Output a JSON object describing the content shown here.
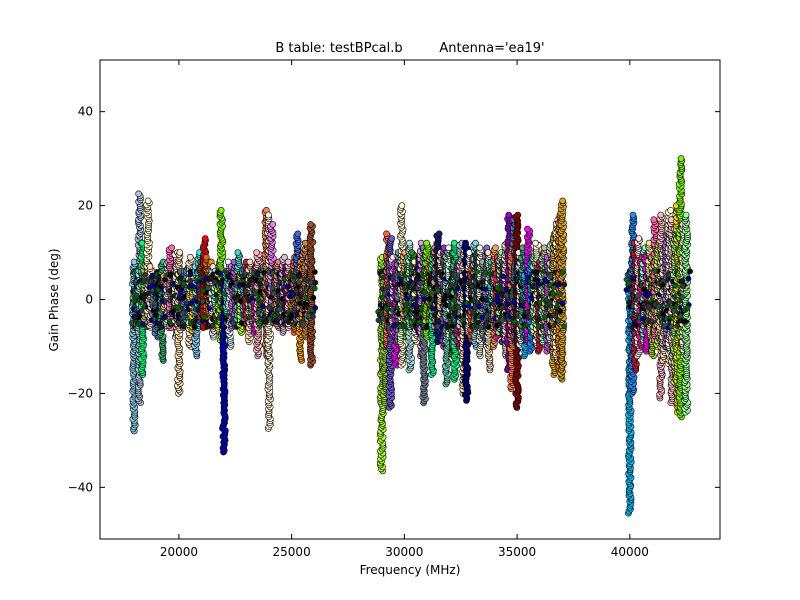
{
  "chart_data": {
    "type": "scatter",
    "title": "B table: testBPcal.b",
    "subtitle": "Antenna='ea19'",
    "xlabel": "Frequency (MHz)",
    "ylabel": "Gain Phase (deg)",
    "xlim": [
      16500,
      44000
    ],
    "ylim": [
      -51,
      51
    ],
    "xticks": [
      20000,
      25000,
      30000,
      35000,
      40000
    ],
    "yticks": [
      -40,
      -20,
      0,
      20,
      40
    ],
    "xtick_labels": [
      "20000",
      "25000",
      "30000",
      "35000",
      "40000"
    ],
    "ytick_labels": [
      "−40",
      "−20",
      "0",
      "20",
      "40"
    ],
    "grid": false,
    "legend": "none",
    "marker": "circle",
    "marker_edge_color": "#000000",
    "spectral_windows": [
      {
        "x": 18000,
        "color": "#87ceeb",
        "ymin": -28,
        "ymax": 8
      },
      {
        "x": 18130,
        "color": "#2e8b57",
        "ymin": -6,
        "ymax": 6
      },
      {
        "x": 18250,
        "color": "#b0c4de",
        "ymin": -22,
        "ymax": 22.5
      },
      {
        "x": 18380,
        "color": "#00ff7f",
        "ymin": -16,
        "ymax": 12
      },
      {
        "x": 18500,
        "color": "#bdb76b",
        "ymin": -5,
        "ymax": 8
      },
      {
        "x": 18630,
        "color": "#fffacd",
        "ymin": -4,
        "ymax": 21
      },
      {
        "x": 18760,
        "color": "#ffdab9",
        "ymin": -6,
        "ymax": 7
      },
      {
        "x": 18880,
        "color": "#708090",
        "ymin": -4,
        "ymax": 5
      },
      {
        "x": 19000,
        "color": "#4682b4",
        "ymin": -8,
        "ymax": 5
      },
      {
        "x": 19130,
        "color": "#00008b",
        "ymin": -3,
        "ymax": 6
      },
      {
        "x": 19250,
        "color": "#3cb371",
        "ymin": -13,
        "ymax": 8
      },
      {
        "x": 19380,
        "color": "#ffa07a",
        "ymin": -5,
        "ymax": 5
      },
      {
        "x": 19500,
        "color": "#afeeee",
        "ymin": -6,
        "ymax": 8
      },
      {
        "x": 19630,
        "color": "#ff69b4",
        "ymin": -6,
        "ymax": 11
      },
      {
        "x": 19760,
        "color": "#006400",
        "ymin": -3,
        "ymax": 4
      },
      {
        "x": 19880,
        "color": "#fff5ee",
        "ymin": -8,
        "ymax": 10
      },
      {
        "x": 20000,
        "color": "#ffe4b5",
        "ymin": -20,
        "ymax": 10
      },
      {
        "x": 20130,
        "color": "#696969",
        "ymin": -4,
        "ymax": 6
      },
      {
        "x": 20250,
        "color": "#9370db",
        "ymin": -6,
        "ymax": 6
      },
      {
        "x": 20380,
        "color": "#20b2aa",
        "ymin": -5,
        "ymax": 7
      },
      {
        "x": 20500,
        "color": "#ffe4c4",
        "ymin": -10,
        "ymax": 9
      },
      {
        "x": 20630,
        "color": "#ffd700",
        "ymin": -7,
        "ymax": 5
      },
      {
        "x": 20760,
        "color": "#87cefa",
        "ymin": -12,
        "ymax": 7
      },
      {
        "x": 20880,
        "color": "#00ffff",
        "ymin": -6,
        "ymax": 10
      },
      {
        "x": 21000,
        "color": "#8b4513",
        "ymin": -5,
        "ymax": 8
      },
      {
        "x": 21130,
        "color": "#ff0000",
        "ymin": -6,
        "ymax": 13
      },
      {
        "x": 21250,
        "color": "#d2691e",
        "ymin": -4,
        "ymax": 9
      },
      {
        "x": 21380,
        "color": "#ff8c00",
        "ymin": -5,
        "ymax": 8
      },
      {
        "x": 21500,
        "color": "#e6e6fa",
        "ymin": -8,
        "ymax": 7
      },
      {
        "x": 21630,
        "color": "#7fffd4",
        "ymin": -4,
        "ymax": 6
      },
      {
        "x": 21760,
        "color": "#ffff00",
        "ymin": -7,
        "ymax": 8
      },
      {
        "x": 21880,
        "color": "#7cfc00",
        "ymin": -9,
        "ymax": 19
      },
      {
        "x": 22000,
        "color": "#0000cd",
        "ymin": -32.5,
        "ymax": 4
      },
      {
        "x": 22130,
        "color": "#40e0d0",
        "ymin": -5,
        "ymax": 6
      },
      {
        "x": 22250,
        "color": "#e0ffff",
        "ymin": -10,
        "ymax": 8
      },
      {
        "x": 22380,
        "color": "#da70d6",
        "ymin": -6,
        "ymax": 7
      },
      {
        "x": 22500,
        "color": "#ba55d3",
        "ymin": -4,
        "ymax": 8
      },
      {
        "x": 22630,
        "color": "#48d1cc",
        "ymin": -5,
        "ymax": 10
      },
      {
        "x": 22760,
        "color": "#adff2f",
        "ymin": -7,
        "ymax": 6
      },
      {
        "x": 22880,
        "color": "#6495ed",
        "ymin": -4,
        "ymax": 7
      },
      {
        "x": 23000,
        "color": "#dc143c",
        "ymin": -6,
        "ymax": 8
      },
      {
        "x": 23130,
        "color": "#f5deb3",
        "ymin": -9,
        "ymax": 8
      },
      {
        "x": 23250,
        "color": "#8fbc8f",
        "ymin": -5,
        "ymax": 6
      },
      {
        "x": 23380,
        "color": "#ff00ff",
        "ymin": -7,
        "ymax": 7
      },
      {
        "x": 23500,
        "color": "#ffb6c1",
        "ymin": -12,
        "ymax": 10
      },
      {
        "x": 23630,
        "color": "#228b22",
        "ymin": -5,
        "ymax": 6
      },
      {
        "x": 23760,
        "color": "#5f9ea0",
        "ymin": -4,
        "ymax": 7
      },
      {
        "x": 23880,
        "color": "#ff7f50",
        "ymin": -12,
        "ymax": 19
      },
      {
        "x": 24000,
        "color": "#fff8dc",
        "ymin": -27.5,
        "ymax": 18
      },
      {
        "x": 24130,
        "color": "#ee82ee",
        "ymin": -4,
        "ymax": 16
      },
      {
        "x": 24250,
        "color": "#556b2f",
        "ymin": -5,
        "ymax": 7
      },
      {
        "x": 24380,
        "color": "#f08080",
        "ymin": -6,
        "ymax": 8
      },
      {
        "x": 24500,
        "color": "#483d8b",
        "ymin": -4,
        "ymax": 6
      },
      {
        "x": 24630,
        "color": "#d8bfd8",
        "ymin": -7,
        "ymax": 9
      },
      {
        "x": 24760,
        "color": "#8b008b",
        "ymin": -5,
        "ymax": 7
      },
      {
        "x": 24880,
        "color": "#ffc0cb",
        "ymin": -6,
        "ymax": 8
      },
      {
        "x": 25000,
        "color": "#b8860b",
        "ymin": -4,
        "ymax": 6
      },
      {
        "x": 25130,
        "color": "#ff6347",
        "ymin": -7,
        "ymax": 9
      },
      {
        "x": 25250,
        "color": "#4169e1",
        "ymin": -5,
        "ymax": 14
      },
      {
        "x": 25380,
        "color": "#ffa500",
        "ymin": -13,
        "ymax": 8
      },
      {
        "x": 25500,
        "color": "#fa8072",
        "ymin": -6,
        "ymax": 10
      },
      {
        "x": 25630,
        "color": "#cd853f",
        "ymin": -8,
        "ymax": 12
      },
      {
        "x": 25760,
        "color": "#bc8f8f",
        "ymin": -5,
        "ymax": 9
      },
      {
        "x": 25880,
        "color": "#a0522d",
        "ymin": -14,
        "ymax": 16
      },
      {
        "x": 29000,
        "color": "#adff2f",
        "ymin": -36.5,
        "ymax": 9
      },
      {
        "x": 29130,
        "color": "#9acd32",
        "ymin": -22,
        "ymax": 6
      },
      {
        "x": 29250,
        "color": "#ff6347",
        "ymin": -10,
        "ymax": 14
      },
      {
        "x": 29380,
        "color": "#6a5acd",
        "ymin": -23,
        "ymax": 13
      },
      {
        "x": 29500,
        "color": "#ffe4e1",
        "ymin": -7,
        "ymax": 9
      },
      {
        "x": 29630,
        "color": "#ff00ff",
        "ymin": -14,
        "ymax": 8
      },
      {
        "x": 29760,
        "color": "#5f9ea0",
        "ymin": -9,
        "ymax": 10
      },
      {
        "x": 29880,
        "color": "#fffacd",
        "ymin": -14,
        "ymax": 20
      },
      {
        "x": 30000,
        "color": "#ffa07a",
        "ymin": -6,
        "ymax": 10
      },
      {
        "x": 30130,
        "color": "#32cd32",
        "ymin": -8,
        "ymax": 9
      },
      {
        "x": 30250,
        "color": "#b0e0e6",
        "ymin": -15,
        "ymax": 12
      },
      {
        "x": 30380,
        "color": "#228b22",
        "ymin": -6,
        "ymax": 10
      },
      {
        "x": 30500,
        "color": "#ffebcd",
        "ymin": -9,
        "ymax": 8
      },
      {
        "x": 30630,
        "color": "#4b0082",
        "ymin": -7,
        "ymax": 9
      },
      {
        "x": 30760,
        "color": "#dda0dd",
        "ymin": -12,
        "ymax": 12
      },
      {
        "x": 30880,
        "color": "#778899",
        "ymin": -22,
        "ymax": 11
      },
      {
        "x": 31000,
        "color": "#7cfc00",
        "ymin": -8,
        "ymax": 12
      },
      {
        "x": 31130,
        "color": "#ff8c00",
        "ymin": -6,
        "ymax": 9
      },
      {
        "x": 31250,
        "color": "#00fa9a",
        "ymin": -16,
        "ymax": 10
      },
      {
        "x": 31380,
        "color": "#e9967a",
        "ymin": -7,
        "ymax": 11
      },
      {
        "x": 31500,
        "color": "#191970",
        "ymin": -9,
        "ymax": 14
      },
      {
        "x": 31630,
        "color": "#f0e68c",
        "ymin": -6,
        "ymax": 10
      },
      {
        "x": 31760,
        "color": "#9932cc",
        "ymin": -10,
        "ymax": 11
      },
      {
        "x": 31880,
        "color": "#66cdaa",
        "ymin": -18,
        "ymax": 10
      },
      {
        "x": 32000,
        "color": "#fffff0",
        "ymin": -8,
        "ymax": 11
      },
      {
        "x": 32130,
        "color": "#2e8b57",
        "ymin": -12,
        "ymax": 10
      },
      {
        "x": 32250,
        "color": "#00ff7f",
        "ymin": -17,
        "ymax": 12
      },
      {
        "x": 32380,
        "color": "#c71585",
        "ymin": -10,
        "ymax": 8
      },
      {
        "x": 32500,
        "color": "#b0c4de",
        "ymin": -9,
        "ymax": 12
      },
      {
        "x": 32630,
        "color": "#ffdead",
        "ymin": -20,
        "ymax": 11
      },
      {
        "x": 32760,
        "color": "#000080",
        "ymin": -21.5,
        "ymax": 12
      },
      {
        "x": 32880,
        "color": "#e0ffff",
        "ymin": -7,
        "ymax": 10
      },
      {
        "x": 33000,
        "color": "#ff4500",
        "ymin": -9,
        "ymax": 9
      },
      {
        "x": 33130,
        "color": "#87ceeb",
        "ymin": -10,
        "ymax": 12
      },
      {
        "x": 33250,
        "color": "#2f4f4f",
        "ymin": -6,
        "ymax": 10
      },
      {
        "x": 33380,
        "color": "#f5f5dc",
        "ymin": -12,
        "ymax": 11
      },
      {
        "x": 33500,
        "color": "#8fbc8f",
        "ymin": -8,
        "ymax": 8
      },
      {
        "x": 33630,
        "color": "#7b68ee",
        "ymin": -9,
        "ymax": 11
      },
      {
        "x": 33760,
        "color": "#ffe4b5",
        "ymin": -15,
        "ymax": 10
      },
      {
        "x": 33880,
        "color": "#00ced1",
        "ymin": -6,
        "ymax": 8
      },
      {
        "x": 34000,
        "color": "#f4a460",
        "ymin": -10,
        "ymax": 11
      },
      {
        "x": 34130,
        "color": "#ff1493",
        "ymin": -8,
        "ymax": 9
      },
      {
        "x": 34250,
        "color": "#90ee90",
        "ymin": -7,
        "ymax": 10
      },
      {
        "x": 34380,
        "color": "#483d8b",
        "ymin": -9,
        "ymax": 8
      },
      {
        "x": 34500,
        "color": "#ffdab9",
        "ymin": -12,
        "ymax": 12
      },
      {
        "x": 34630,
        "color": "#9400d3",
        "ymin": -15,
        "ymax": 18
      },
      {
        "x": 34760,
        "color": "#ff7f50",
        "ymin": -19,
        "ymax": 12
      },
      {
        "x": 34880,
        "color": "#4682b4",
        "ymin": -9,
        "ymax": 17
      },
      {
        "x": 35000,
        "color": "#8b0000",
        "ymin": -23,
        "ymax": 18
      },
      {
        "x": 35130,
        "color": "#e6e6fa",
        "ymin": -10,
        "ymax": 10
      },
      {
        "x": 35250,
        "color": "#3cb371",
        "ymin": -8,
        "ymax": 11
      },
      {
        "x": 35380,
        "color": "#00bfff",
        "ymin": -12,
        "ymax": 9
      },
      {
        "x": 35500,
        "color": "#ff00ff",
        "ymin": -9,
        "ymax": 15
      },
      {
        "x": 35630,
        "color": "#1e90ff",
        "ymin": -11,
        "ymax": 9
      },
      {
        "x": 35760,
        "color": "#98fb98",
        "ymin": -7,
        "ymax": 10
      },
      {
        "x": 35880,
        "color": "#fafad2",
        "ymin": -10,
        "ymax": 12
      },
      {
        "x": 36000,
        "color": "#dc143c",
        "ymin": -11,
        "ymax": 8
      },
      {
        "x": 36130,
        "color": "#7fffd4",
        "ymin": -9,
        "ymax": 10
      },
      {
        "x": 36250,
        "color": "#d2b48c",
        "ymin": -8,
        "ymax": 11
      },
      {
        "x": 36380,
        "color": "#ba55d3",
        "ymin": -11,
        "ymax": 9
      },
      {
        "x": 36500,
        "color": "#add8e6",
        "ymin": -9,
        "ymax": 12
      },
      {
        "x": 36630,
        "color": "#daa520",
        "ymin": -16,
        "ymax": 14
      },
      {
        "x": 36760,
        "color": "#fff8dc",
        "ymin": -13,
        "ymax": 17
      },
      {
        "x": 36880,
        "color": "#ff8c00",
        "ymin": -15,
        "ymax": 18
      },
      {
        "x": 37000,
        "color": "#daa520",
        "ymin": -17,
        "ymax": 21
      },
      {
        "x": 40000,
        "color": "#00bfff",
        "ymin": -45.5,
        "ymax": 6
      },
      {
        "x": 40130,
        "color": "#1e90ff",
        "ymin": -20,
        "ymax": 18
      },
      {
        "x": 40250,
        "color": "#dc143c",
        "ymin": -15,
        "ymax": 12
      },
      {
        "x": 40380,
        "color": "#ffe4e1",
        "ymin": -12,
        "ymax": 13
      },
      {
        "x": 40500,
        "color": "#ff1493",
        "ymin": -10,
        "ymax": 9
      },
      {
        "x": 40630,
        "color": "#7fffd4",
        "ymin": -9,
        "ymax": 11
      },
      {
        "x": 40760,
        "color": "#ff00ff",
        "ymin": -11,
        "ymax": 10
      },
      {
        "x": 40880,
        "color": "#f0e68c",
        "ymin": -8,
        "ymax": 12
      },
      {
        "x": 41000,
        "color": "#9acd32",
        "ymin": -12,
        "ymax": 9
      },
      {
        "x": 41130,
        "color": "#ff69b4",
        "ymin": -9,
        "ymax": 17
      },
      {
        "x": 41250,
        "color": "#adff2f",
        "ymin": -10,
        "ymax": 12
      },
      {
        "x": 41380,
        "color": "#ffb6c1",
        "ymin": -21,
        "ymax": 18
      },
      {
        "x": 41500,
        "color": "#f5deb3",
        "ymin": -13,
        "ymax": 11
      },
      {
        "x": 41630,
        "color": "#9370db",
        "ymin": -10,
        "ymax": 14
      },
      {
        "x": 41760,
        "color": "#fffacd",
        "ymin": -14,
        "ymax": 19
      },
      {
        "x": 41880,
        "color": "#ffc0cb",
        "ymin": -22,
        "ymax": 17
      },
      {
        "x": 42000,
        "color": "#90ee90",
        "ymin": -18,
        "ymax": 15
      },
      {
        "x": 42130,
        "color": "#ffd700",
        "ymin": -24,
        "ymax": 20
      },
      {
        "x": 42250,
        "color": "#7cfc00",
        "ymin": -25,
        "ymax": 30
      },
      {
        "x": 42380,
        "color": "#ffffe0",
        "ymin": -12,
        "ymax": 16
      },
      {
        "x": 42500,
        "color": "#98fb98",
        "ymin": -24,
        "ymax": 18
      }
    ]
  }
}
